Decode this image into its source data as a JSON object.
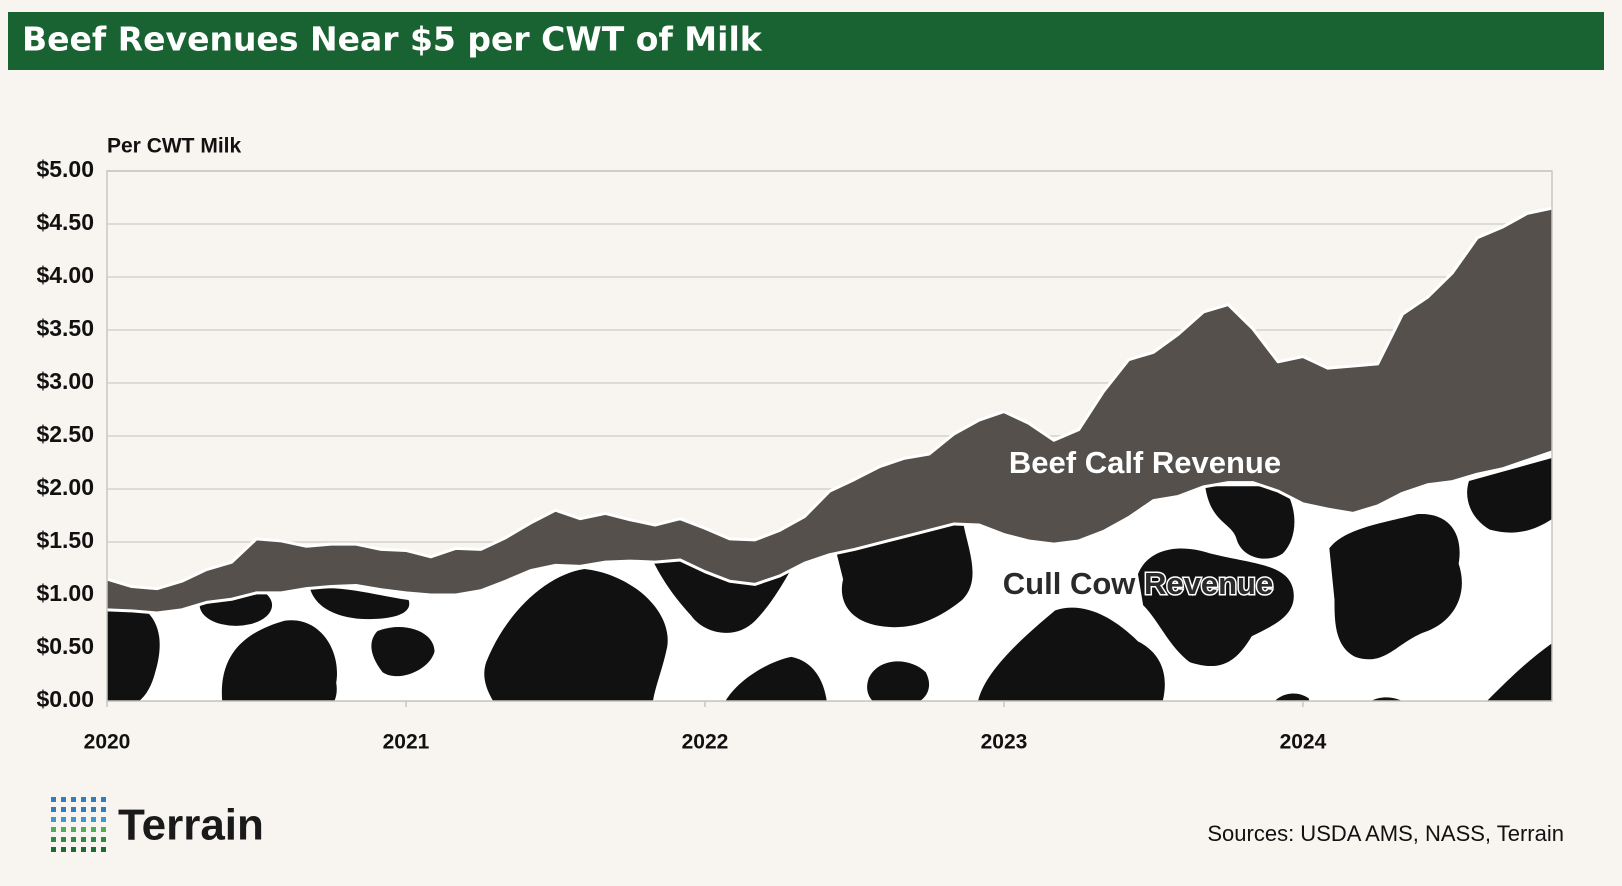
{
  "chart_data": {
    "type": "stacked-area",
    "title": "Beef Revenues Near $5 per CWT of Milk",
    "y_axis_label": "Per CWT Milk",
    "source": "Sources: USDA AMS, NASS, Terrain",
    "brand": "Terrain",
    "x": [
      2020,
      2020.083,
      2020.167,
      2020.25,
      2020.333,
      2020.417,
      2020.5,
      2020.583,
      2020.667,
      2020.75,
      2020.833,
      2020.917,
      2021,
      2021.083,
      2021.167,
      2021.25,
      2021.333,
      2021.417,
      2021.5,
      2021.583,
      2021.667,
      2021.75,
      2021.833,
      2021.917,
      2022,
      2022.083,
      2022.167,
      2022.25,
      2022.333,
      2022.417,
      2022.5,
      2022.583,
      2022.667,
      2022.75,
      2022.833,
      2022.917,
      2023,
      2023.083,
      2023.167,
      2023.25,
      2023.333,
      2023.417,
      2023.5,
      2023.583,
      2023.667,
      2023.75,
      2023.833,
      2023.917,
      2024,
      2024.083,
      2024.167,
      2024.25,
      2024.333,
      2024.417,
      2024.5,
      2024.583,
      2024.667,
      2024.75,
      2024.833
    ],
    "series": [
      {
        "name": "Cull Cow Revenue",
        "color": "#ffffff",
        "values": [
          0.86,
          0.85,
          0.83,
          0.86,
          0.93,
          0.96,
          1.02,
          1.02,
          1.06,
          1.08,
          1.09,
          1.05,
          1.02,
          1.0,
          1.0,
          1.04,
          1.13,
          1.23,
          1.28,
          1.27,
          1.31,
          1.32,
          1.31,
          1.33,
          1.22,
          1.13,
          1.1,
          1.18,
          1.3,
          1.38,
          1.43,
          1.49,
          1.55,
          1.61,
          1.67,
          1.66,
          1.57,
          1.51,
          1.48,
          1.51,
          1.6,
          1.73,
          1.89,
          1.93,
          2.02,
          2.06,
          2.06,
          1.98,
          1.86,
          1.81,
          1.77,
          1.84,
          1.96,
          2.04,
          2.07,
          2.14,
          2.19,
          2.27,
          2.35
        ]
      },
      {
        "name": "Beef Calf Revenue",
        "color": "#55504c",
        "values": [
          0.29,
          0.23,
          0.23,
          0.27,
          0.31,
          0.35,
          0.51,
          0.49,
          0.4,
          0.4,
          0.39,
          0.38,
          0.4,
          0.36,
          0.44,
          0.39,
          0.41,
          0.45,
          0.52,
          0.45,
          0.46,
          0.39,
          0.35,
          0.39,
          0.41,
          0.4,
          0.42,
          0.43,
          0.44,
          0.6,
          0.66,
          0.72,
          0.74,
          0.72,
          0.85,
          0.99,
          1.16,
          1.11,
          0.98,
          1.05,
          1.32,
          1.49,
          1.4,
          1.53,
          1.65,
          1.68,
          1.45,
          1.22,
          1.39,
          1.33,
          1.39,
          1.34,
          1.69,
          1.77,
          1.97,
          2.23,
          2.28,
          2.33,
          2.3
        ]
      }
    ],
    "xlim": [
      2020,
      2024.833
    ],
    "xticks": [
      2020,
      2021,
      2022,
      2023,
      2024
    ],
    "ylim": [
      0,
      5
    ],
    "yticks": [
      {
        "value": 0,
        "label": "$0.00"
      },
      {
        "value": 0.5,
        "label": "$0.50"
      },
      {
        "value": 1,
        "label": "$1.00"
      },
      {
        "value": 1.5,
        "label": "$1.50"
      },
      {
        "value": 2,
        "label": "$2.00"
      },
      {
        "value": 2.5,
        "label": "$2.50"
      },
      {
        "value": 3,
        "label": "$3.00"
      },
      {
        "value": 3.5,
        "label": "$3.50"
      },
      {
        "value": 4,
        "label": "$4.00"
      },
      {
        "value": 4.5,
        "label": "$4.50"
      },
      {
        "value": 5,
        "label": "$5.00"
      }
    ],
    "grid": true
  }
}
